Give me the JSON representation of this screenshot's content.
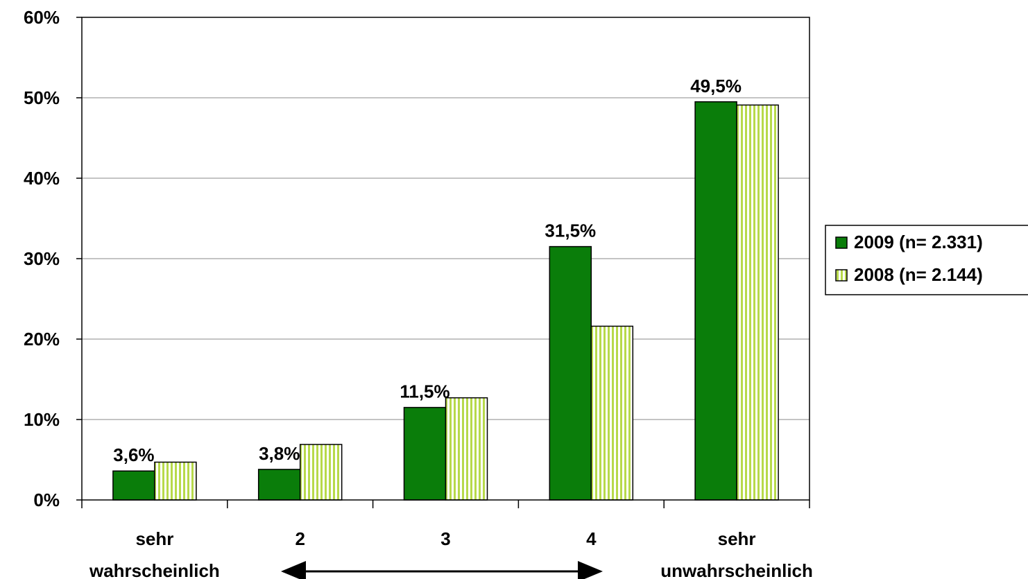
{
  "colors": {
    "series_2009": "#0a7d0a",
    "series_2008_stripe": "#b7d94a",
    "series_2008_bg": "#ffffff",
    "gridline": "#a0a0a0",
    "axis": "#000000"
  },
  "chart_data": {
    "type": "bar",
    "categories": [
      [
        "sehr",
        "wahrscheinlich"
      ],
      [
        "2"
      ],
      [
        "3"
      ],
      [
        "4"
      ],
      [
        "sehr",
        "unwahrscheinlich"
      ]
    ],
    "series": [
      {
        "name": "2009 (n= 2.331)",
        "values": [
          3.6,
          3.8,
          11.5,
          31.5,
          49.5
        ],
        "pattern": "solid"
      },
      {
        "name": "2008 (n= 2.144)",
        "values": [
          4.7,
          6.9,
          12.7,
          21.6,
          49.1
        ],
        "pattern": "vertical-stripes"
      }
    ],
    "data_labels": [
      "3,6%",
      "3,8%",
      "11,5%",
      "31,5%",
      "49,5%"
    ],
    "y_ticks": [
      "0%",
      "10%",
      "20%",
      "30%",
      "40%",
      "50%",
      "60%"
    ],
    "ylim": [
      0,
      60
    ],
    "grid": true,
    "legend_position": "right",
    "double_arrow_between": [
      "wahrscheinlich",
      "unwahrscheinlich"
    ]
  }
}
